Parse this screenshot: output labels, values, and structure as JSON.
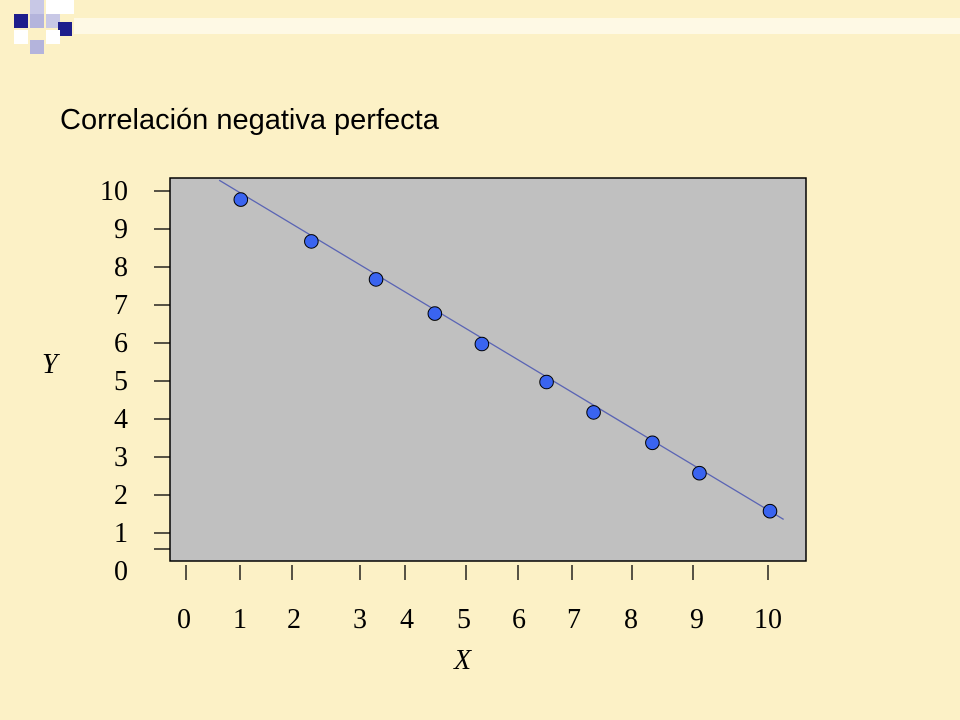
{
  "slide": {
    "title": "Correlación negativa perfecta",
    "background_color": "#FCF1C6",
    "accent_colors": [
      "#1E1E8C",
      "#B4B4DC",
      "#FFFFFF"
    ]
  },
  "chart_data": {
    "type": "scatter",
    "title": "Correlación negativa perfecta",
    "xlabel": "X",
    "ylabel": "Y",
    "xlim": [
      0,
      10
    ],
    "ylim": [
      0,
      10
    ],
    "x_ticks": [
      "0",
      "1",
      "2",
      "3",
      "4",
      "5",
      "6",
      "7",
      "8",
      "9",
      "10"
    ],
    "y_ticks": [
      "0",
      "1",
      "2",
      "3",
      "4",
      "5",
      "6",
      "7",
      "8",
      "9",
      "10"
    ],
    "grid": false,
    "legend": "none",
    "plot_background": "#C0C0C0",
    "point_color": "#3A64F0",
    "line_color": "#5A64B4",
    "series": [
      {
        "points": [
          {
            "x": 1.0,
            "y": 9.8
          },
          {
            "x": 2.2,
            "y": 8.7
          },
          {
            "x": 3.3,
            "y": 7.7
          },
          {
            "x": 4.3,
            "y": 6.8
          },
          {
            "x": 5.1,
            "y": 6.0
          },
          {
            "x": 6.2,
            "y": 5.0
          },
          {
            "x": 7.0,
            "y": 4.2
          },
          {
            "x": 8.0,
            "y": 3.4
          },
          {
            "x": 8.8,
            "y": 2.6
          },
          {
            "x": 10.0,
            "y": 1.6
          }
        ]
      }
    ],
    "trend_line": {
      "from": {
        "x": 0.7,
        "y": 10.1
      },
      "to": {
        "x": 10.3,
        "y": 1.2
      }
    }
  }
}
